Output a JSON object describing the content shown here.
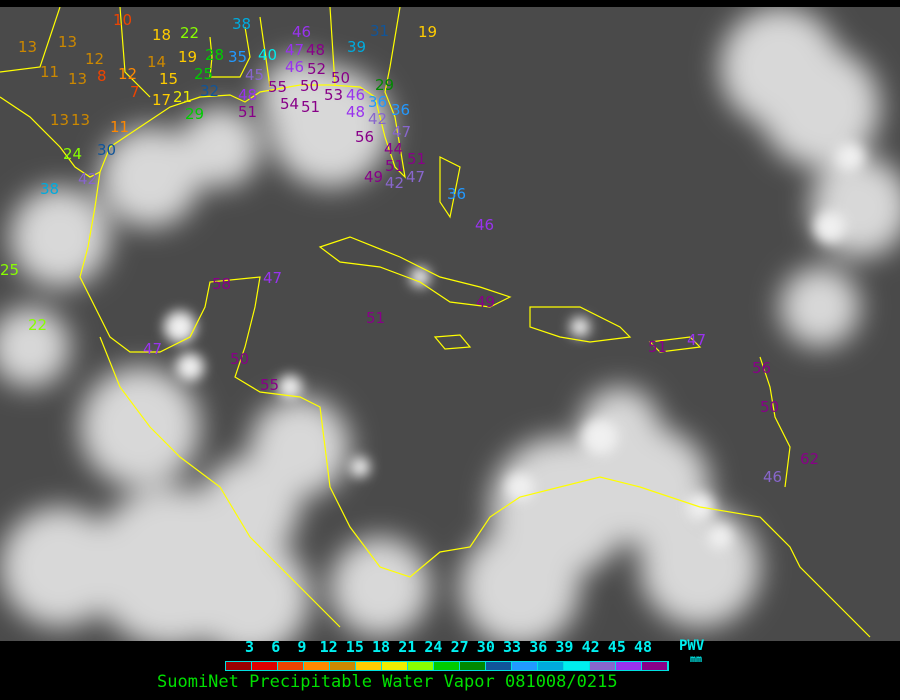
{
  "title": "SuomiNet Precipitable Water Vapor 081008/0215",
  "legend": {
    "unit_label": "PWV",
    "unit": "mm",
    "ticks": [
      "3",
      "6",
      "9",
      "12",
      "15",
      "18",
      "21",
      "24",
      "27",
      "30",
      "33",
      "36",
      "39",
      "42",
      "45",
      "48"
    ],
    "colors": [
      "#990000",
      "#dd0000",
      "#ee4400",
      "#ff8800",
      "#cc8800",
      "#ffcc00",
      "#eeee00",
      "#88ff00",
      "#00cc00",
      "#008800",
      "#115599",
      "#2299ff",
      "#00aadd",
      "#00eeee",
      "#8866cc",
      "#9933ee",
      "#880088"
    ]
  },
  "coastline_color": "#ffff00",
  "stations": [
    "13",
    "13",
    "11",
    "13",
    "12",
    "8",
    "12",
    "7",
    "14",
    "15",
    "19",
    "25",
    "28",
    "35",
    "32",
    "21",
    "17",
    "29",
    "22",
    "18",
    "10",
    "38",
    "13",
    "13",
    "11",
    "24",
    "30",
    "38",
    "42",
    "40",
    "46",
    "47",
    "48",
    "46",
    "52",
    "50",
    "45",
    "51",
    "48",
    "55",
    "54",
    "51",
    "53",
    "50",
    "46",
    "48",
    "36",
    "36",
    "42",
    "47",
    "56",
    "44",
    "51",
    "51",
    "49",
    "42",
    "47",
    "31",
    "39",
    "19",
    "29",
    "36",
    "46",
    "25",
    "22",
    "58",
    "47",
    "51",
    "49",
    "47",
    "50",
    "55",
    "51",
    "47",
    "56",
    "50",
    "62",
    "46"
  ]
}
